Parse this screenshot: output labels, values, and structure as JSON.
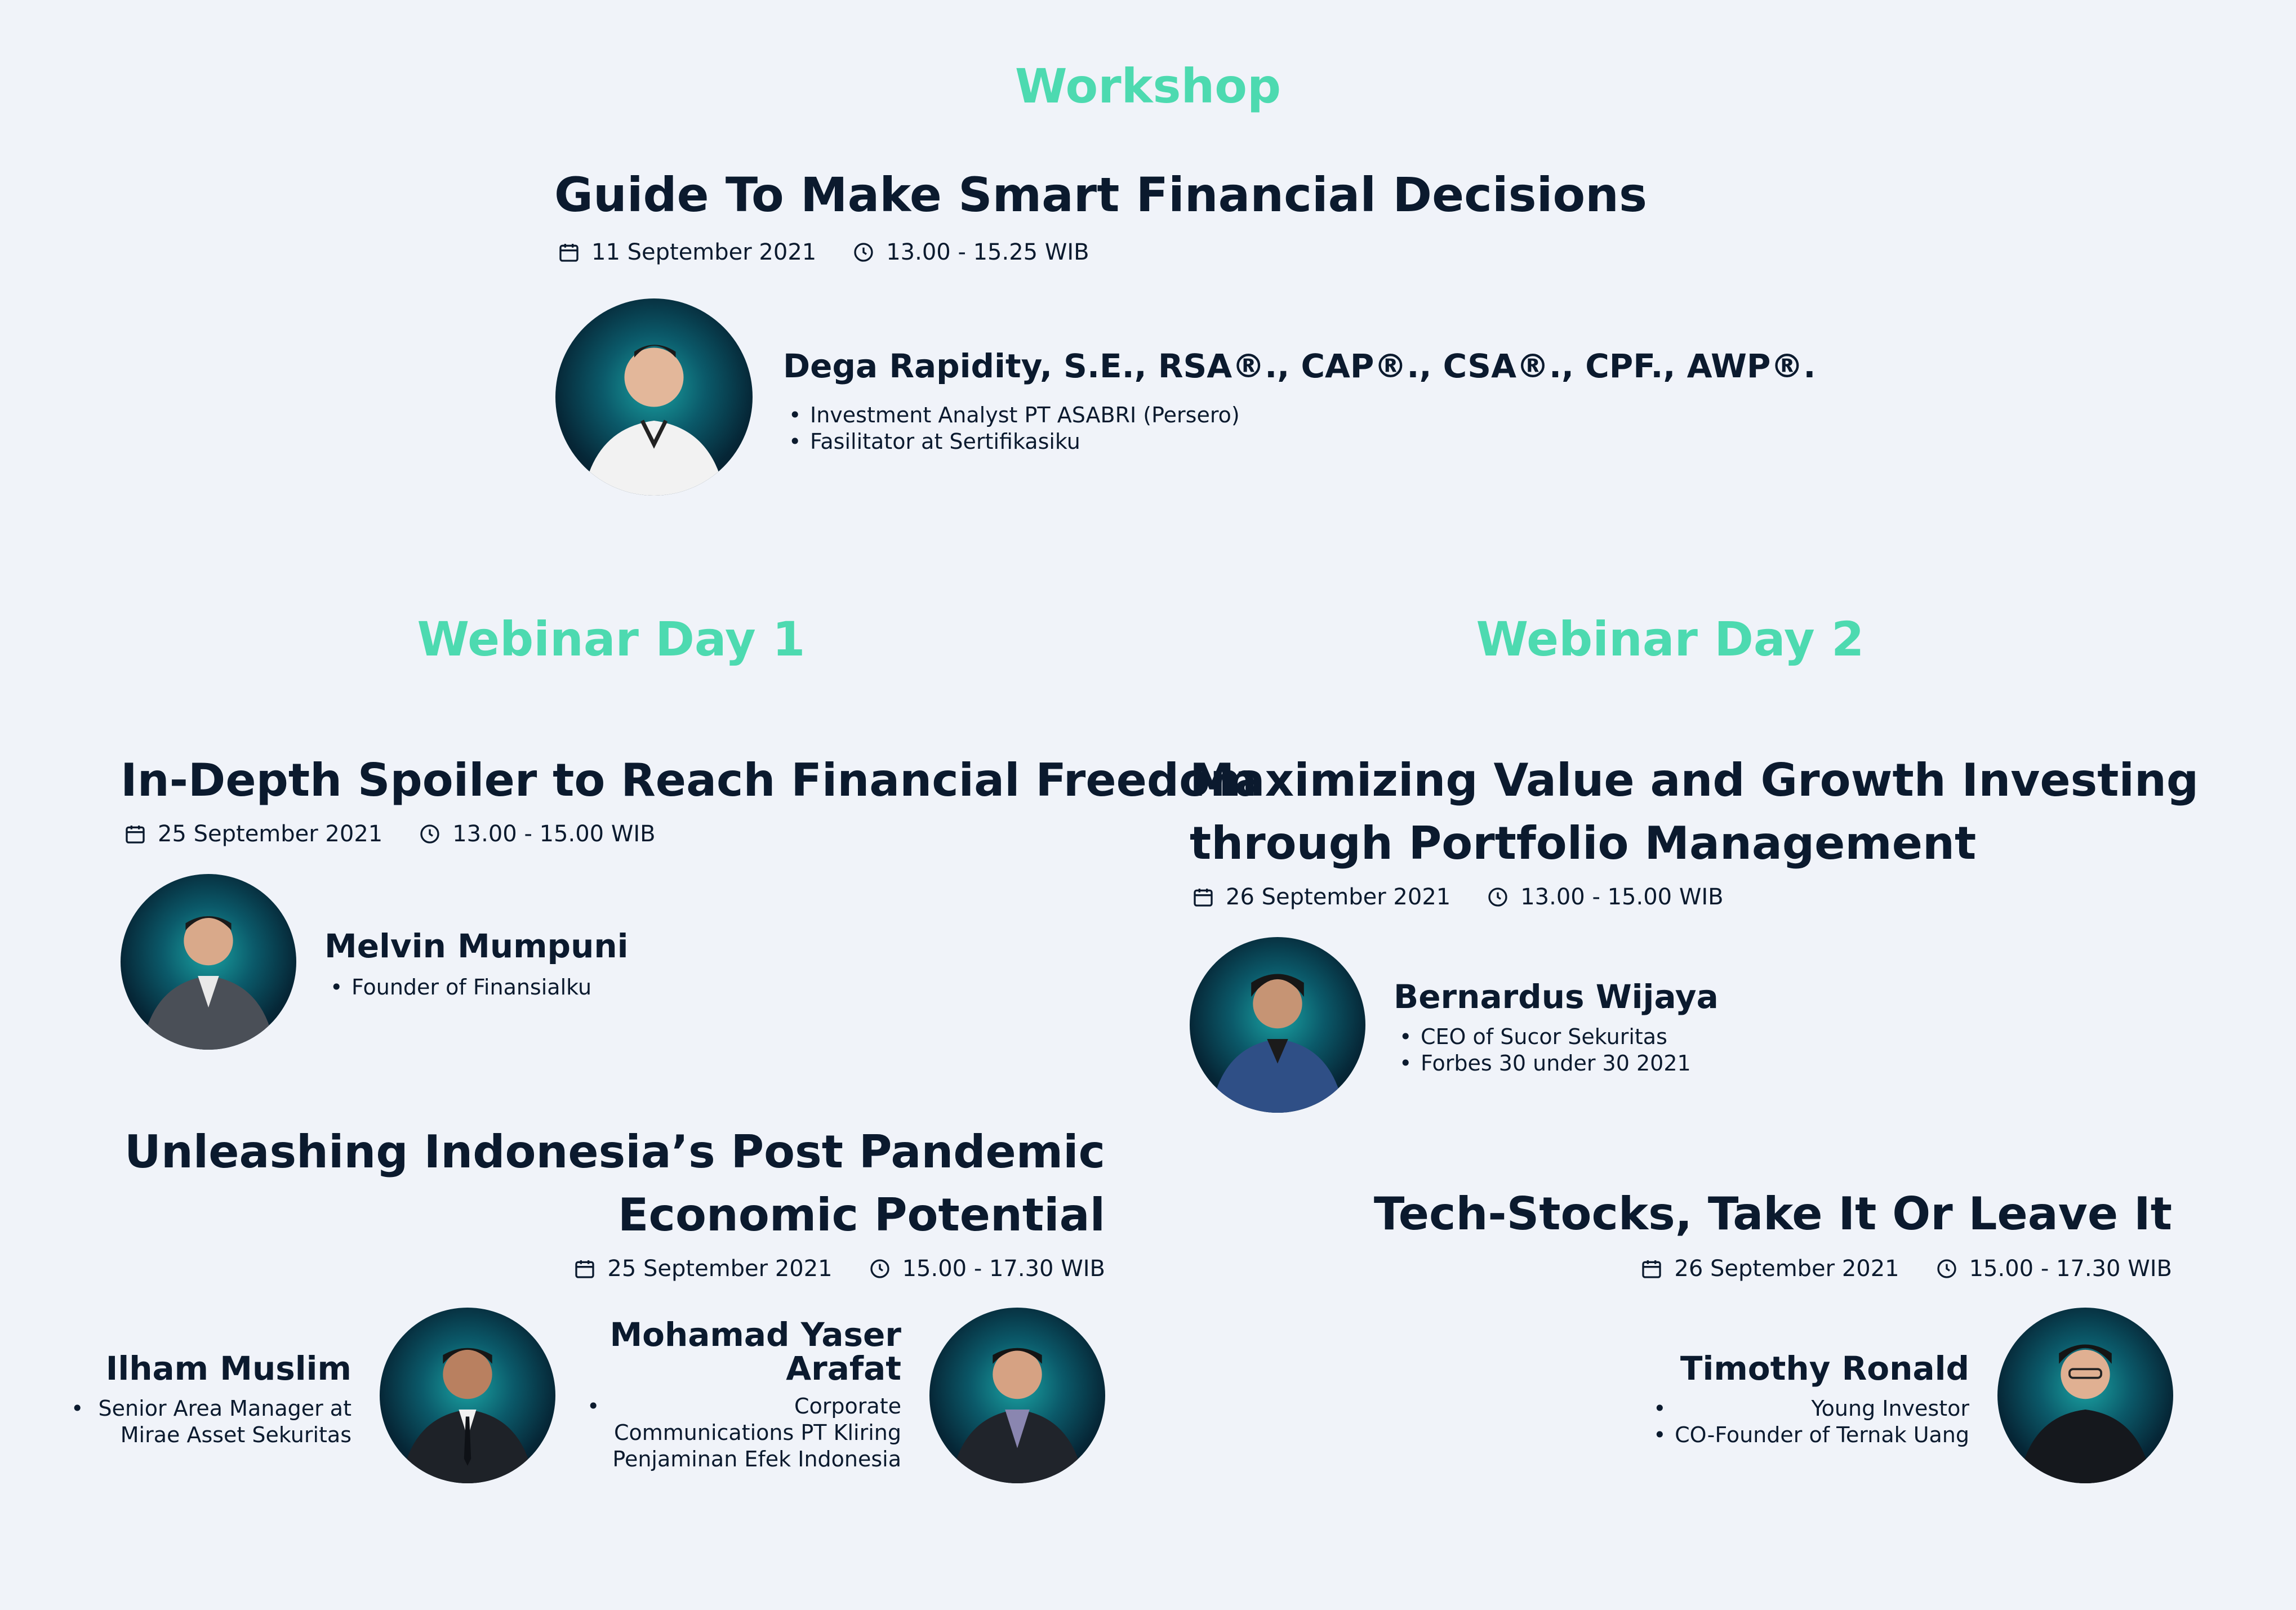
{
  "workshop": {
    "label": "Workshop",
    "title": "Guide To Make Smart Financial Decisions",
    "date": "11 September 2021",
    "time": "13.00 - 15.25 WIB",
    "speaker": {
      "name": "Dega Rapidity, S.E., RSA®., CAP®., CSA®., CPF., AWP®.",
      "roles": [
        "Investment Analyst PT ASABRI (Persero)",
        "Fasilitator at Sertifikasiku"
      ]
    }
  },
  "day1": {
    "label": "Webinar Day 1",
    "sessions": [
      {
        "title": "In-Depth Spoiler to Reach Financial Freedom",
        "date": "25 September 2021",
        "time": "13.00 - 15.00 WIB",
        "speakers": [
          {
            "name": "Melvin Mumpuni",
            "roles": [
              "Founder of Finansialku"
            ]
          }
        ]
      },
      {
        "title_line1": "Unleashing Indonesia’s Post Pandemic",
        "title_line2": "Economic Potential",
        "date": "25 September 2021",
        "time": "15.00 - 17.30 WIB",
        "speakers": [
          {
            "name": "Ilham Muslim",
            "roles": [
              "Senior Area Manager at Mirae Asset Sekuritas"
            ]
          },
          {
            "name": "Mohamad Yaser Arafat",
            "roles": [
              "Corporate Communications PT Kliring Penjaminan Efek Indonesia"
            ]
          }
        ]
      }
    ]
  },
  "day2": {
    "label": "Webinar Day 2",
    "sessions": [
      {
        "title_line1": "Maximizing Value and Growth Investing",
        "title_line2": "through Portfolio Management",
        "date": "26 September 2021",
        "time": "13.00 - 15.00 WIB",
        "speakers": [
          {
            "name": "Bernardus Wijaya",
            "roles": [
              "CEO of Sucor Sekuritas",
              "Forbes 30 under 30 2021"
            ]
          }
        ]
      },
      {
        "title": "Tech-Stocks, Take It Or Leave It",
        "date": "26 September 2021",
        "time": "15.00 - 17.30 WIB",
        "speakers": [
          {
            "name": "Timothy Ronald",
            "roles": [
              "Young Investor",
              "CO-Founder of Ternak Uang"
            ]
          }
        ]
      }
    ]
  },
  "icons": {
    "date": "calendar-icon",
    "time": "clock-icon"
  },
  "colors": {
    "accent": "#4ddab0",
    "text": "#0b1a2e",
    "background": "#f0f3f9"
  }
}
